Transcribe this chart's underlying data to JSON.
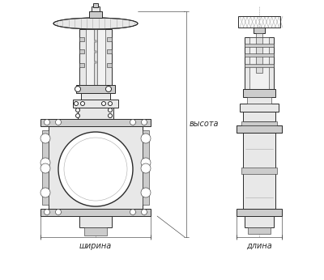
{
  "bg_color": "#ffffff",
  "line_color": "#2a2a2a",
  "gray_light": "#e8e8e8",
  "gray_med": "#cccccc",
  "gray_dark": "#aaaaaa",
  "label_width": "ширина",
  "label_height": "высота",
  "label_length": "длина",
  "fig_width": 4.0,
  "fig_height": 3.46,
  "dpi": 100
}
